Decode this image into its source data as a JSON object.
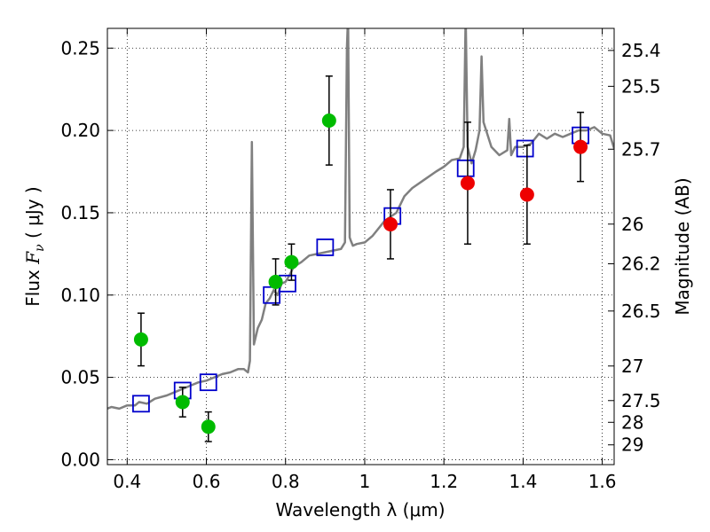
{
  "chart_data": {
    "type": "scatter",
    "xlabel": "Wavelength  λ (μm)",
    "ylabel": {
      "prefix": "Flux ",
      "symbol": "F",
      "subscript": "ν",
      "suffix": "  ( μJy )"
    },
    "y2label": "Magnitude (AB)",
    "xlim": [
      0.35,
      1.63
    ],
    "ylim": [
      -0.003,
      0.262
    ],
    "grid": true,
    "x_ticks": [
      0.4,
      0.6,
      0.8,
      1.0,
      1.2,
      1.4,
      1.6
    ],
    "x_tick_labels": [
      "0.4",
      "0.6",
      "0.8",
      "1",
      "1.2",
      "1.4",
      "1.6"
    ],
    "y_ticks": [
      0.0,
      0.05,
      0.1,
      0.15,
      0.2,
      0.25
    ],
    "y_tick_labels": [
      "0.00",
      "0.05",
      "0.10",
      "0.15",
      "0.20",
      "0.25"
    ],
    "y2_ticks": [
      {
        "label": "25.4",
        "flux": 0.2486
      },
      {
        "label": "25.5",
        "flux": 0.2268
      },
      {
        "label": "25.7",
        "flux": 0.1886
      },
      {
        "label": "26",
        "flux": 0.1431
      },
      {
        "label": "26.2",
        "flux": 0.119
      },
      {
        "label": "26.5",
        "flux": 0.0903
      },
      {
        "label": "27",
        "flux": 0.0569
      },
      {
        "label": "27.5",
        "flux": 0.0359
      },
      {
        "label": "28",
        "flux": 0.0227
      },
      {
        "label": "29",
        "flux": 0.009
      }
    ],
    "series": [
      {
        "name": "model-spectrum",
        "kind": "line",
        "color": "#808080",
        "x": [
          0.35,
          0.36,
          0.38,
          0.4,
          0.42,
          0.43,
          0.45,
          0.47,
          0.5,
          0.52,
          0.54,
          0.56,
          0.58,
          0.6,
          0.62,
          0.64,
          0.66,
          0.68,
          0.695,
          0.7,
          0.705,
          0.71,
          0.715,
          0.72,
          0.73,
          0.74,
          0.75,
          0.76,
          0.77,
          0.78,
          0.79,
          0.8,
          0.81,
          0.82,
          0.84,
          0.86,
          0.88,
          0.9,
          0.92,
          0.94,
          0.95,
          0.955,
          0.958,
          0.962,
          0.965,
          0.97,
          0.98,
          1.0,
          1.02,
          1.05,
          1.08,
          1.1,
          1.12,
          1.15,
          1.18,
          1.2,
          1.22,
          1.24,
          1.25,
          1.255,
          1.26,
          1.265,
          1.27,
          1.28,
          1.29,
          1.295,
          1.3,
          1.32,
          1.34,
          1.36,
          1.365,
          1.37,
          1.38,
          1.4,
          1.42,
          1.44,
          1.46,
          1.48,
          1.5,
          1.52,
          1.54,
          1.56,
          1.58,
          1.6,
          1.62,
          1.63
        ],
        "y": [
          0.031,
          0.032,
          0.031,
          0.033,
          0.033,
          0.035,
          0.034,
          0.037,
          0.039,
          0.041,
          0.043,
          0.045,
          0.047,
          0.048,
          0.05,
          0.052,
          0.053,
          0.055,
          0.055,
          0.054,
          0.053,
          0.06,
          0.193,
          0.07,
          0.08,
          0.085,
          0.095,
          0.098,
          0.103,
          0.1,
          0.107,
          0.108,
          0.112,
          0.117,
          0.12,
          0.124,
          0.125,
          0.126,
          0.127,
          0.128,
          0.132,
          0.25,
          0.27,
          0.135,
          0.133,
          0.13,
          0.131,
          0.132,
          0.136,
          0.145,
          0.15,
          0.16,
          0.165,
          0.17,
          0.175,
          0.178,
          0.182,
          0.183,
          0.19,
          0.27,
          0.19,
          0.185,
          0.18,
          0.188,
          0.2,
          0.245,
          0.205,
          0.19,
          0.185,
          0.188,
          0.207,
          0.185,
          0.19,
          0.19,
          0.192,
          0.198,
          0.195,
          0.198,
          0.196,
          0.198,
          0.2,
          0.2,
          0.202,
          0.198,
          0.197,
          0.189
        ]
      },
      {
        "name": "model-photometry",
        "kind": "open-square",
        "color": "#0000cc",
        "x": [
          0.435,
          0.54,
          0.605,
          0.765,
          0.805,
          0.9,
          1.07,
          1.255,
          1.405,
          1.545
        ],
        "y": [
          0.034,
          0.042,
          0.047,
          0.1,
          0.107,
          0.129,
          0.148,
          0.177,
          0.189,
          0.197
        ]
      },
      {
        "name": "observed-optical",
        "kind": "point",
        "color": "#00bb00",
        "x": [
          0.435,
          0.54,
          0.605,
          0.775,
          0.815,
          0.91
        ],
        "y": [
          0.073,
          0.035,
          0.02,
          0.108,
          0.12,
          0.206
        ],
        "yerr": [
          0.016,
          0.009,
          0.009,
          0.014,
          0.011,
          0.027
        ]
      },
      {
        "name": "observed-nir",
        "kind": "point",
        "color": "#ee0000",
        "x": [
          1.065,
          1.26,
          1.41,
          1.545
        ],
        "y": [
          0.143,
          0.168,
          0.161,
          0.19
        ],
        "yerr": [
          0.021,
          0.037,
          0.03,
          0.021
        ]
      }
    ]
  }
}
